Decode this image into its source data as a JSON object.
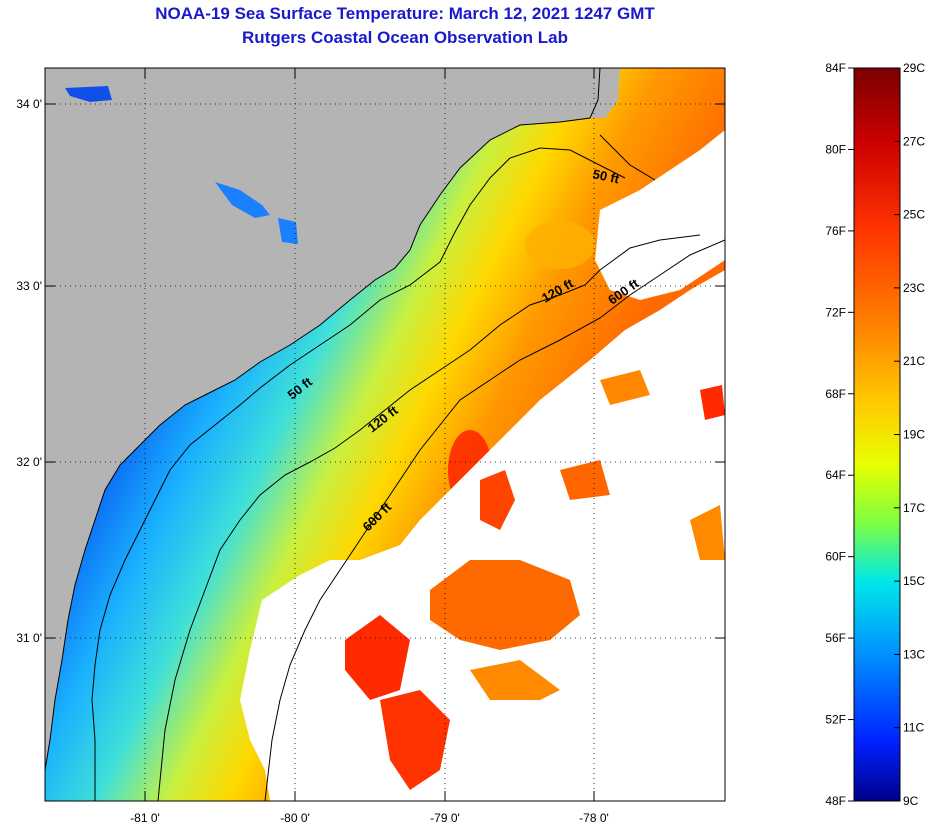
{
  "title": {
    "line1": "NOAA-19 Sea Surface Temperature:  March 12, 2021 1247 GMT",
    "line2": "Rutgers Coastal Ocean Observation Lab"
  },
  "map": {
    "lon_ticks": [
      "-81 0'",
      "-80 0'",
      "-79 0'",
      "-78 0'"
    ],
    "lat_ticks": [
      "34 0'",
      "33 0'",
      "32 0'",
      "31 0'"
    ],
    "contours": [
      {
        "label": "50 ft"
      },
      {
        "label": "50 ft"
      },
      {
        "label": "120 ft"
      },
      {
        "label": "120 ft"
      },
      {
        "label": "600 ft"
      },
      {
        "label": "600 ft"
      }
    ]
  },
  "colorbar": {
    "fahrenheit": [
      "84F",
      "80F",
      "76F",
      "72F",
      "68F",
      "64F",
      "60F",
      "56F",
      "52F",
      "48F"
    ],
    "celsius": [
      "29C",
      "27C",
      "25C",
      "23C",
      "21C",
      "19C",
      "17C",
      "15C",
      "13C",
      "11C",
      "9C"
    ],
    "gradient_colors": [
      "#7a0000",
      "#cc0000",
      "#ff3300",
      "#ff8800",
      "#ffcc00",
      "#e8ff00",
      "#7fff40",
      "#00e8e8",
      "#0090ff",
      "#0020ff",
      "#000088"
    ]
  },
  "colors": {
    "land": "#b4b4b4",
    "cloud": "#ffffff",
    "title": "#1a1acc"
  }
}
